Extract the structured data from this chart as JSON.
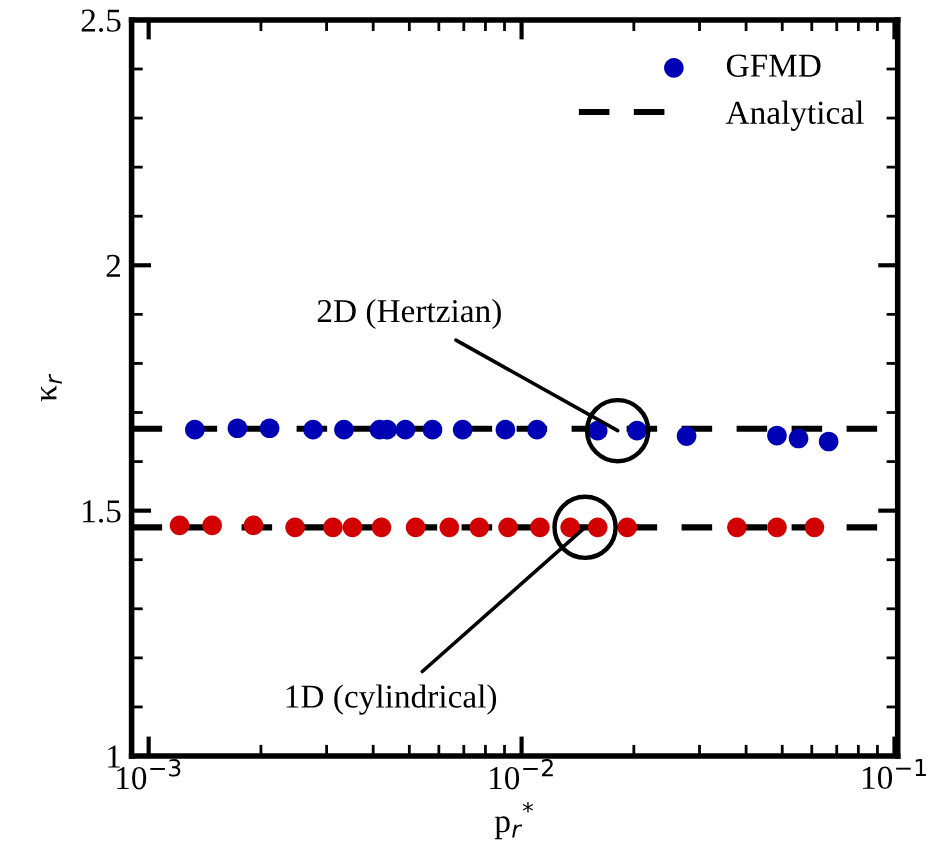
{
  "chart_data": {
    "type": "scatter",
    "xlabel": "p$_{r}$$^{*}$",
    "ylabel": "κ$_{r}$",
    "log": "x",
    "xlim": [
      0.0009,
      0.102
    ],
    "ylim": [
      1,
      2.5
    ],
    "xticks": [
      {
        "value": 0.001,
        "label": "10$^{−3}$"
      },
      {
        "value": 0.01,
        "label": "10$^{−2}$"
      },
      {
        "value": 0.1,
        "label": "10$^{−1}$"
      }
    ],
    "yticks": [
      1,
      1.5,
      2,
      2.5
    ],
    "grid": false,
    "legend": "top right",
    "series": [
      {
        "name": "GFMD",
        "marker": "circle",
        "color": "#0000b4",
        "x": [
          0.00133,
          0.00173,
          0.00211,
          0.00276,
          0.00334,
          0.00416,
          0.00436,
          0.00488,
          0.00577,
          0.00695,
          0.00905,
          0.011,
          0.016,
          0.0204,
          0.0277,
          0.0484,
          0.0553,
          0.0666
        ],
        "values": [
          1.665,
          1.668,
          1.668,
          1.665,
          1.665,
          1.665,
          1.665,
          1.665,
          1.665,
          1.665,
          1.665,
          1.665,
          1.663,
          1.663,
          1.652,
          1.653,
          1.647,
          1.641
        ]
      },
      {
        "marker": "circle",
        "color": "#d20000",
        "x": [
          0.00121,
          0.00148,
          0.00191,
          0.00247,
          0.00312,
          0.00352,
          0.00421,
          0.0052,
          0.0064,
          0.0077,
          0.0092,
          0.0112,
          0.0135,
          0.016,
          0.0192,
          0.0378,
          0.0484,
          0.061
        ],
        "values": [
          1.47,
          1.47,
          1.47,
          1.466,
          1.466,
          1.466,
          1.466,
          1.466,
          1.466,
          1.466,
          1.466,
          1.466,
          1.466,
          1.466,
          1.466,
          1.466,
          1.466,
          1.466
        ]
      },
      {
        "name": "Analytical",
        "type": "line",
        "marker": "none",
        "line_style": "dashed",
        "color": "#000000",
        "x": [
          0.0009,
          0.102
        ],
        "values": [
          1.667,
          1.667
        ]
      },
      {
        "type": "line",
        "marker": "none",
        "line_style": "dashed",
        "color": "#000000",
        "x": [
          0.0009,
          0.102
        ],
        "values": [
          1.466,
          1.466
        ]
      }
    ],
    "annotations": [
      {
        "text": "2D (Hertzian)",
        "x": 0.0181,
        "y": 1.663
      },
      {
        "text": "1D (cylindrical)",
        "x": 0.0148,
        "y": 1.466
      }
    ]
  }
}
